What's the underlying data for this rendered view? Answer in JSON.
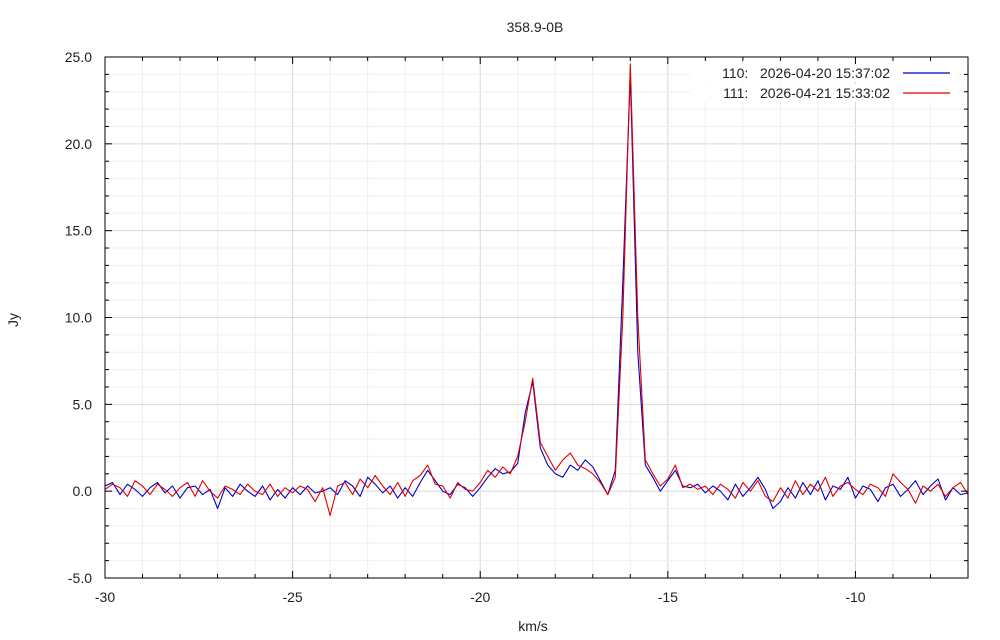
{
  "chart_data": {
    "type": "line",
    "title": "358.9-0B",
    "xlabel": "km/s",
    "ylabel": "Jy",
    "xlim": [
      -30,
      -7
    ],
    "ylim": [
      -5,
      25
    ],
    "xticks": [
      -30,
      -25,
      -20,
      -15,
      -10
    ],
    "xtick_labels": [
      "-30",
      "-25",
      "-20",
      "-15",
      "-10"
    ],
    "yticks": [
      -5,
      0,
      5,
      10,
      15,
      20,
      25
    ],
    "ytick_labels": [
      "-5.0",
      "0.0",
      "5.0",
      "10.0",
      "15.0",
      "20.0",
      "25.0"
    ],
    "grid": true,
    "legend_position": "top-right",
    "x_start": -30,
    "x_step": 0.2,
    "series": [
      {
        "name": "110:   2026-04-20 15:37:02",
        "color": "#0000cc",
        "values": [
          0.3,
          0.5,
          -0.2,
          0.4,
          0.1,
          -0.3,
          0.2,
          0.5,
          -0.1,
          0.3,
          -0.4,
          0.2,
          0.3,
          -0.2,
          0.1,
          -1.0,
          0.2,
          -0.3,
          0.4,
          0.0,
          -0.3,
          0.3,
          -0.5,
          0.1,
          -0.4,
          0.2,
          -0.2,
          0.3,
          -0.1,
          0.0,
          0.2,
          -0.2,
          0.6,
          0.3,
          -0.3,
          0.8,
          0.4,
          -0.1,
          0.3,
          -0.4,
          0.2,
          -0.3,
          0.5,
          1.2,
          0.6,
          0.0,
          -0.2,
          0.4,
          0.2,
          -0.3,
          0.2,
          0.8,
          1.3,
          1.0,
          1.1,
          1.6,
          4.5,
          6.3,
          2.5,
          1.5,
          1.0,
          0.8,
          1.5,
          1.2,
          1.8,
          1.4,
          0.6,
          -0.2,
          1.2,
          12.0,
          24.0,
          8.0,
          1.5,
          0.8,
          0.0,
          0.6,
          1.2,
          0.3,
          0.2,
          0.4,
          -0.1,
          0.3,
          0.0,
          -0.5,
          0.4,
          -0.3,
          0.2,
          0.8,
          0.1,
          -1.0,
          -0.6,
          0.2,
          -0.4,
          0.5,
          -0.2,
          0.6,
          -0.5,
          0.3,
          0.1,
          0.8,
          -0.4,
          0.3,
          0.1,
          -0.6,
          0.2,
          0.4,
          -0.3,
          0.1,
          0.6,
          -0.2,
          0.3,
          0.7,
          -0.5,
          0.2,
          -0.2,
          -0.1
        ]
      },
      {
        "name": "111:   2026-04-21 15:33:02",
        "color": "#dd0000",
        "values": [
          0.1,
          0.4,
          0.2,
          -0.3,
          0.6,
          0.3,
          -0.2,
          0.4,
          0.1,
          -0.3,
          0.2,
          0.5,
          -0.3,
          0.6,
          0.0,
          -0.4,
          0.3,
          0.1,
          -0.2,
          0.4,
          0.0,
          -0.2,
          0.4,
          -0.3,
          0.2,
          -0.1,
          0.3,
          0.1,
          -0.6,
          0.2,
          -1.4,
          0.3,
          0.5,
          -0.2,
          0.7,
          0.2,
          0.9,
          0.3,
          -0.2,
          0.5,
          -0.3,
          0.6,
          0.9,
          1.5,
          0.4,
          0.3,
          -0.4,
          0.5,
          0.1,
          0.0,
          0.5,
          1.2,
          0.8,
          1.4,
          1.0,
          2.0,
          4.0,
          6.5,
          2.8,
          2.0,
          1.2,
          1.8,
          2.2,
          1.5,
          1.3,
          1.0,
          0.5,
          -0.2,
          0.8,
          10.0,
          24.6,
          10.0,
          1.8,
          1.0,
          0.3,
          0.7,
          1.5,
          0.2,
          0.4,
          0.1,
          0.3,
          -0.2,
          0.4,
          0.1,
          -0.4,
          0.5,
          0.0,
          0.6,
          -0.3,
          -0.6,
          0.2,
          -0.4,
          0.6,
          -0.2,
          0.4,
          0.0,
          0.8,
          -0.3,
          0.3,
          0.5,
          0.1,
          -0.2,
          0.4,
          0.2,
          -0.3,
          1.0,
          0.5,
          0.1,
          -0.7,
          0.3,
          0.0,
          0.4,
          -0.3,
          0.2,
          0.5,
          -0.2
        ]
      }
    ]
  }
}
